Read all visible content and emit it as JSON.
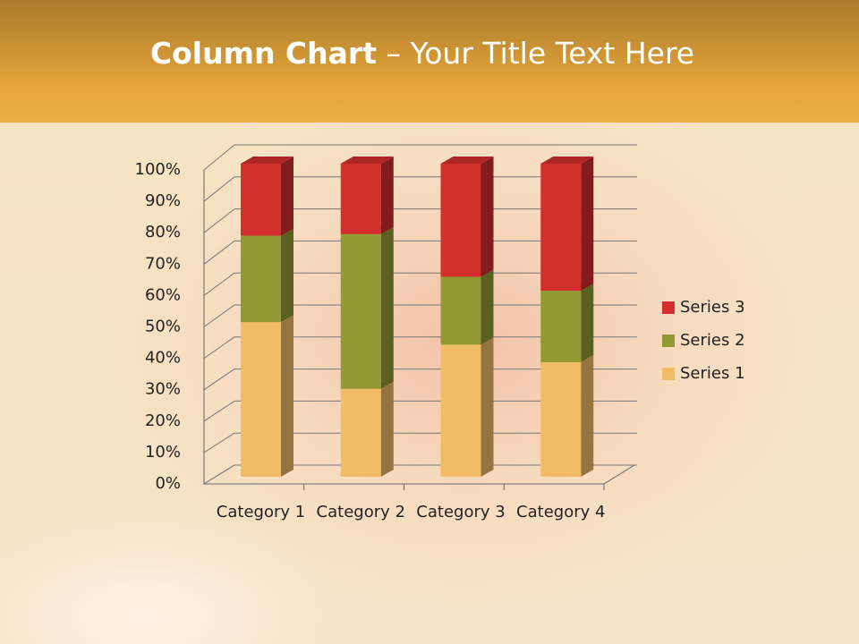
{
  "chart_data": {
    "type": "bar",
    "stacked": true,
    "title": "Column Chart",
    "subtitle": "– Your Title Text Here",
    "categories": [
      "Category 1",
      "Category 2",
      "Category 3",
      "Category 4"
    ],
    "series": [
      {
        "name": "Series 1",
        "color": "#f2bb66",
        "values": [
          49.4,
          28.1,
          42.2,
          36.6
        ]
      },
      {
        "name": "Series 2",
        "color": "#939a33",
        "values": [
          27.6,
          49.4,
          21.7,
          22.8
        ]
      },
      {
        "name": "Series 3",
        "color": "#d32f2f",
        "values": [
          23.0,
          22.5,
          36.1,
          40.6
        ]
      }
    ],
    "ylim": [
      0,
      100
    ],
    "yticks": [
      {
        "value": 0,
        "label": "0%"
      },
      {
        "value": 10,
        "label": "10%"
      },
      {
        "value": 20,
        "label": "20%"
      },
      {
        "value": 30,
        "label": "30%"
      },
      {
        "value": 40,
        "label": "40%"
      },
      {
        "value": 50,
        "label": "50%"
      },
      {
        "value": 60,
        "label": "60%"
      },
      {
        "value": 70,
        "label": "70%"
      },
      {
        "value": 80,
        "label": "80%"
      },
      {
        "value": 90,
        "label": "90%"
      },
      {
        "value": 100,
        "label": "100%"
      }
    ],
    "grid": true,
    "legend": "right"
  }
}
